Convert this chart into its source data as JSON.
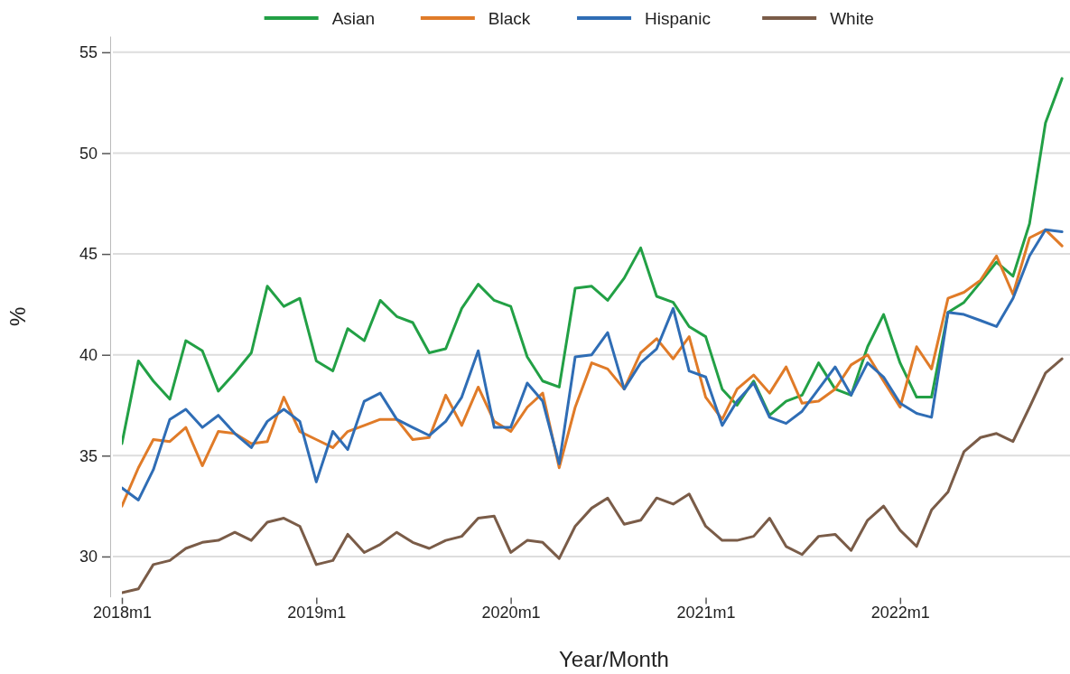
{
  "chart_data": {
    "type": "line",
    "xlabel": "Year/Month",
    "ylabel": "%",
    "x": [
      "2018-01",
      "2018-02",
      "2018-03",
      "2018-04",
      "2018-05",
      "2018-06",
      "2018-07",
      "2018-08",
      "2018-09",
      "2018-10",
      "2018-11",
      "2018-12",
      "2019-01",
      "2019-02",
      "2019-03",
      "2019-04",
      "2019-05",
      "2019-06",
      "2019-07",
      "2019-08",
      "2019-09",
      "2019-10",
      "2019-11",
      "2019-12",
      "2020-01",
      "2020-02",
      "2020-03",
      "2020-04",
      "2020-05",
      "2020-06",
      "2020-07",
      "2020-08",
      "2020-09",
      "2020-10",
      "2020-11",
      "2020-12",
      "2021-01",
      "2021-02",
      "2021-03",
      "2021-04",
      "2021-05",
      "2021-06",
      "2021-07",
      "2021-08",
      "2021-09",
      "2021-10",
      "2021-11",
      "2021-12",
      "2022-01",
      "2022-02",
      "2022-03",
      "2022-04",
      "2022-05",
      "2022-06",
      "2022-07",
      "2022-08",
      "2022-09",
      "2022-10",
      "2022-11"
    ],
    "series": [
      {
        "name": "Asian",
        "color": "#22a045",
        "values": [
          35.6,
          39.7,
          38.7,
          37.8,
          40.7,
          40.2,
          38.2,
          39.1,
          40.1,
          43.4,
          42.4,
          42.8,
          39.7,
          39.2,
          41.3,
          40.7,
          42.7,
          41.9,
          41.6,
          40.1,
          40.3,
          42.3,
          43.5,
          42.7,
          42.4,
          39.9,
          38.7,
          38.4,
          43.3,
          43.4,
          42.7,
          43.8,
          45.3,
          42.9,
          42.6,
          41.4,
          40.9,
          38.3,
          37.5,
          38.7,
          37.0,
          37.7,
          38.0,
          39.6,
          38.3,
          38.0,
          40.4,
          42.0,
          39.6,
          37.9,
          37.9,
          42.1,
          42.6,
          43.6,
          44.6,
          43.9,
          46.5,
          51.5,
          53.7
        ]
      },
      {
        "name": "Black",
        "color": "#e07b28",
        "values": [
          32.5,
          34.4,
          35.8,
          35.7,
          36.4,
          34.5,
          36.2,
          36.1,
          35.6,
          35.7,
          37.9,
          36.2,
          35.8,
          35.4,
          36.2,
          36.5,
          36.8,
          36.8,
          35.8,
          35.9,
          38.0,
          36.5,
          38.4,
          36.7,
          36.2,
          37.4,
          38.1,
          34.4,
          37.4,
          39.6,
          39.3,
          38.3,
          40.1,
          40.8,
          39.8,
          40.9,
          37.9,
          36.8,
          38.3,
          39.0,
          38.1,
          39.4,
          37.6,
          37.7,
          38.3,
          39.5,
          40.0,
          38.7,
          37.4,
          40.4,
          39.3,
          42.8,
          43.1,
          43.7,
          44.9,
          43.0,
          45.8,
          46.2,
          45.4
        ]
      },
      {
        "name": "Hispanic",
        "color": "#2f6db5",
        "values": [
          33.4,
          32.8,
          34.3,
          36.8,
          37.3,
          36.4,
          37.0,
          36.1,
          35.4,
          36.7,
          37.3,
          36.7,
          33.7,
          36.2,
          35.3,
          37.7,
          38.1,
          36.8,
          36.4,
          36.0,
          36.7,
          37.9,
          40.2,
          36.4,
          36.4,
          38.6,
          37.7,
          34.6,
          39.9,
          40.0,
          41.1,
          38.3,
          39.6,
          40.3,
          42.3,
          39.2,
          38.9,
          36.5,
          37.7,
          38.6,
          36.9,
          36.6,
          37.2,
          38.3,
          39.4,
          38.0,
          39.6,
          38.9,
          37.6,
          37.1,
          36.9,
          42.1,
          42.0,
          41.7,
          41.4,
          42.8,
          44.9,
          46.2,
          46.1
        ]
      },
      {
        "name": "White",
        "color": "#7a5c48",
        "values": [
          28.2,
          28.4,
          29.6,
          29.8,
          30.4,
          30.7,
          30.8,
          31.2,
          30.8,
          31.7,
          31.9,
          31.5,
          29.6,
          29.8,
          31.1,
          30.2,
          30.6,
          31.2,
          30.7,
          30.4,
          30.8,
          31.0,
          31.9,
          32.0,
          30.2,
          30.8,
          30.7,
          29.9,
          31.5,
          32.4,
          32.9,
          31.6,
          31.8,
          32.9,
          32.6,
          33.1,
          31.5,
          30.8,
          30.8,
          31.0,
          31.9,
          30.5,
          30.1,
          31.0,
          31.1,
          30.3,
          31.8,
          32.5,
          31.3,
          30.5,
          32.3,
          33.2,
          35.2,
          35.9,
          36.1,
          35.7,
          37.4,
          39.1,
          39.8
        ]
      }
    ],
    "xlim": [
      "2018-01",
      "2022-11-16"
    ],
    "xticks": [
      {
        "value": "2018-01",
        "label": "2018m1"
      },
      {
        "value": "2019-01",
        "label": "2019m1"
      },
      {
        "value": "2020-01",
        "label": "2020m1"
      },
      {
        "value": "2021-01",
        "label": "2021m1"
      },
      {
        "value": "2022-01",
        "label": "2022m1"
      }
    ],
    "ylim": [
      28,
      55.8
    ],
    "yticks": [
      30,
      35,
      40,
      45,
      50,
      55
    ],
    "grid": "y",
    "legend": "top",
    "line_style": "solid"
  }
}
